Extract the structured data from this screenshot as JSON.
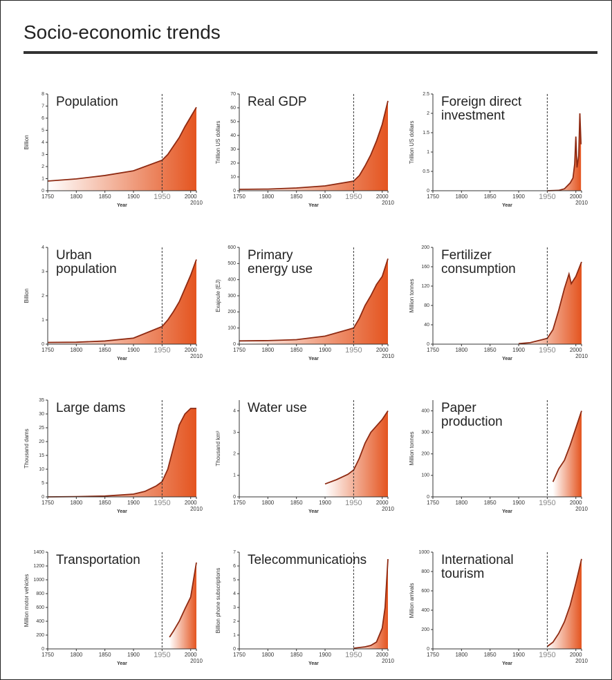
{
  "title": "Socio-economic trends",
  "chart_data": [
    {
      "type": "area",
      "title": "Population",
      "ylabel": "Billion",
      "xlabel": "Year",
      "x": [
        1750,
        1800,
        1850,
        1900,
        1950,
        1960,
        1970,
        1980,
        1990,
        2000,
        2010
      ],
      "values": [
        0.8,
        0.98,
        1.26,
        1.65,
        2.52,
        3.0,
        3.7,
        4.4,
        5.3,
        6.1,
        6.9
      ],
      "xlim": [
        1750,
        2010
      ],
      "xticks": [
        1750,
        1800,
        1850,
        1900,
        1950,
        2000,
        2010
      ],
      "ylim": [
        0,
        8
      ],
      "yticks": [
        0,
        1,
        2,
        3,
        4,
        5,
        6,
        7,
        8
      ],
      "vline": 1950,
      "color": "#8e2a12",
      "fill_color": "#e4541f"
    },
    {
      "type": "area",
      "title": "Real GDP",
      "ylabel": "Trillion US dollars",
      "xlabel": "Year",
      "x": [
        1750,
        1800,
        1850,
        1900,
        1950,
        1960,
        1970,
        1980,
        1990,
        2000,
        2010
      ],
      "values": [
        1,
        1.2,
        2,
        3.5,
        7,
        11,
        18,
        26,
        36,
        48,
        65
      ],
      "xlim": [
        1750,
        2010
      ],
      "xticks": [
        1750,
        1800,
        1850,
        1900,
        1950,
        2000,
        2010
      ],
      "ylim": [
        0,
        70
      ],
      "yticks": [
        0,
        10,
        20,
        30,
        40,
        50,
        60,
        70
      ],
      "vline": 1950,
      "color": "#8e2a12",
      "fill_color": "#e4541f"
    },
    {
      "type": "area",
      "title": "Foreign direct\ninvestment",
      "ylabel": "Trillion US dollars",
      "xlabel": "Year",
      "x": [
        1950,
        1970,
        1980,
        1990,
        1995,
        1998,
        2000,
        2002,
        2005,
        2007,
        2009
      ],
      "values": [
        0,
        0.01,
        0.05,
        0.2,
        0.33,
        0.7,
        1.4,
        0.6,
        0.9,
        2.0,
        1.2
      ],
      "xlim": [
        1750,
        2010
      ],
      "xticks": [
        1750,
        1800,
        1850,
        1900,
        1950,
        2000,
        2010
      ],
      "ylim": [
        0,
        2.5
      ],
      "yticks": [
        0,
        0.5,
        1,
        1.5,
        2,
        2.5
      ],
      "vline": 1950,
      "color": "#8e2a12",
      "fill_color": "#e4541f"
    },
    {
      "type": "area",
      "title": "Urban\npopulation",
      "ylabel": "Billion",
      "xlabel": "Year",
      "x": [
        1750,
        1800,
        1850,
        1900,
        1950,
        1960,
        1970,
        1980,
        1990,
        2000,
        2010
      ],
      "values": [
        0.07,
        0.08,
        0.13,
        0.25,
        0.73,
        1.0,
        1.35,
        1.75,
        2.3,
        2.85,
        3.5
      ],
      "xlim": [
        1750,
        2010
      ],
      "xticks": [
        1750,
        1800,
        1850,
        1900,
        1950,
        2000,
        2010
      ],
      "ylim": [
        0,
        4
      ],
      "yticks": [
        0,
        1,
        2,
        3,
        4
      ],
      "vline": 1950,
      "color": "#8e2a12",
      "fill_color": "#e4541f"
    },
    {
      "type": "area",
      "title": "Primary\nenergy use",
      "ylabel": "Exajoule (EJ)",
      "xlabel": "Year",
      "x": [
        1750,
        1800,
        1850,
        1900,
        1940,
        1950,
        1960,
        1970,
        1980,
        1990,
        2000,
        2010
      ],
      "values": [
        20,
        22,
        28,
        50,
        90,
        100,
        160,
        240,
        300,
        370,
        420,
        530
      ],
      "xlim": [
        1750,
        2010
      ],
      "xticks": [
        1750,
        1800,
        1850,
        1900,
        1950,
        2000,
        2010
      ],
      "ylim": [
        0,
        600
      ],
      "yticks": [
        0,
        100,
        200,
        300,
        400,
        500,
        600
      ],
      "vline": 1950,
      "color": "#8e2a12",
      "fill_color": "#e4541f"
    },
    {
      "type": "area",
      "title": "Fertilizer\nconsumption",
      "ylabel": "Million tonnes",
      "xlabel": "Year",
      "x": [
        1900,
        1920,
        1940,
        1950,
        1960,
        1970,
        1980,
        1988,
        1992,
        2000,
        2010
      ],
      "values": [
        1,
        3,
        9,
        12,
        30,
        70,
        115,
        145,
        125,
        140,
        170
      ],
      "xlim": [
        1750,
        2010
      ],
      "xticks": [
        1750,
        1800,
        1850,
        1900,
        1950,
        2000,
        2010
      ],
      "ylim": [
        0,
        200
      ],
      "yticks": [
        0,
        40,
        80,
        120,
        160,
        200
      ],
      "vline": 1950,
      "color": "#8e2a12",
      "fill_color": "#e4541f"
    },
    {
      "type": "area",
      "title": "Large dams",
      "ylabel": "Thousand dams",
      "xlabel": "Year",
      "x": [
        1750,
        1800,
        1850,
        1900,
        1920,
        1940,
        1950,
        1960,
        1970,
        1980,
        1990,
        2000,
        2010
      ],
      "values": [
        0,
        0.1,
        0.3,
        1,
        2,
        4,
        5.5,
        10,
        18,
        26,
        30,
        32,
        32
      ],
      "xlim": [
        1750,
        2010
      ],
      "xticks": [
        1750,
        1800,
        1850,
        1900,
        1950,
        2000,
        2010
      ],
      "ylim": [
        0,
        35
      ],
      "yticks": [
        0,
        5,
        10,
        15,
        20,
        25,
        30,
        35
      ],
      "vline": 1950,
      "color": "#8e2a12",
      "fill_color": "#e4541f"
    },
    {
      "type": "area",
      "title": "Water use",
      "ylabel": "Thousand km³",
      "xlabel": "Year",
      "x": [
        1900,
        1920,
        1940,
        1950,
        1960,
        1970,
        1980,
        1990,
        2000,
        2010
      ],
      "values": [
        0.6,
        0.8,
        1.05,
        1.25,
        1.8,
        2.5,
        3.0,
        3.3,
        3.6,
        4.0
      ],
      "xlim": [
        1750,
        2010
      ],
      "xticks": [
        1750,
        1800,
        1850,
        1900,
        1950,
        2000,
        2010
      ],
      "ylim": [
        0,
        4.5
      ],
      "yticks": [
        0,
        1,
        2,
        3,
        4
      ],
      "vline": 1950,
      "color": "#8e2a12",
      "fill_color": "#e4541f"
    },
    {
      "type": "area",
      "title": "Paper\nproduction",
      "ylabel": "Million tonnes",
      "xlabel": "Year",
      "x": [
        1960,
        1970,
        1980,
        1990,
        2000,
        2010
      ],
      "values": [
        70,
        130,
        170,
        240,
        320,
        400
      ],
      "xlim": [
        1750,
        2010
      ],
      "xticks": [
        1750,
        1800,
        1850,
        1900,
        1950,
        2000,
        2010
      ],
      "ylim": [
        0,
        450
      ],
      "yticks": [
        0,
        100,
        200,
        300,
        400
      ],
      "vline": 1950,
      "color": "#8e2a12",
      "fill_color": "#e4541f"
    },
    {
      "type": "area",
      "title": "Transportation",
      "ylabel": "Million motor vehicles",
      "xlabel": "Year",
      "x": [
        1963,
        1970,
        1980,
        1990,
        2000,
        2010
      ],
      "values": [
        170,
        260,
        400,
        580,
        750,
        1250
      ],
      "xlim": [
        1750,
        2010
      ],
      "xticks": [
        1750,
        1800,
        1850,
        1900,
        1950,
        2000,
        2010
      ],
      "ylim": [
        0,
        1400
      ],
      "yticks": [
        0,
        200,
        400,
        600,
        800,
        1000,
        1200,
        1400
      ],
      "vline": 1950,
      "color": "#8e2a12",
      "fill_color": "#e4541f"
    },
    {
      "type": "area",
      "title": "Telecommunications",
      "ylabel": "Billion phone subscriptions",
      "xlabel": "Year",
      "x": [
        1950,
        1960,
        1970,
        1980,
        1990,
        2000,
        2005,
        2010
      ],
      "values": [
        0.05,
        0.1,
        0.15,
        0.25,
        0.5,
        1.5,
        3,
        6.5
      ],
      "xlim": [
        1750,
        2010
      ],
      "xticks": [
        1750,
        1800,
        1850,
        1900,
        1950,
        2000,
        2010
      ],
      "ylim": [
        0,
        7
      ],
      "yticks": [
        0,
        1,
        2,
        3,
        4,
        5,
        6,
        7
      ],
      "vline": 1950,
      "color": "#8e2a12",
      "fill_color": "#e4541f"
    },
    {
      "type": "area",
      "title": "International\ntourism",
      "ylabel": "Million arrivals",
      "xlabel": "Year",
      "x": [
        1950,
        1960,
        1970,
        1980,
        1990,
        2000,
        2010
      ],
      "values": [
        25,
        70,
        160,
        280,
        450,
        680,
        930
      ],
      "xlim": [
        1750,
        2010
      ],
      "xticks": [
        1750,
        1800,
        1850,
        1900,
        1950,
        2000,
        2010
      ],
      "ylim": [
        0,
        1000
      ],
      "yticks": [
        0,
        200,
        400,
        600,
        800,
        1000
      ],
      "vline": 1950,
      "color": "#8e2a12",
      "fill_color": "#e4541f"
    }
  ]
}
